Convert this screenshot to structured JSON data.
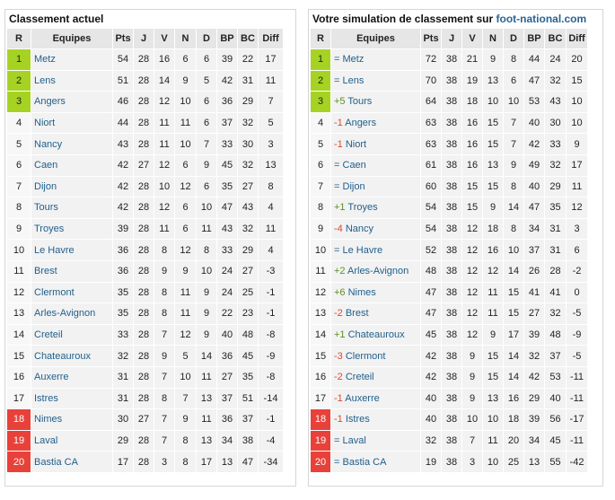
{
  "left": {
    "title": "Classement actuel",
    "headers": [
      "R",
      "Equipes",
      "Pts",
      "J",
      "V",
      "N",
      "D",
      "BP",
      "BC",
      "Diff"
    ],
    "rows": [
      {
        "r": "1",
        "team": "Metz",
        "pts": "54",
        "j": "28",
        "v": "16",
        "n": "6",
        "d": "6",
        "bp": "39",
        "bc": "22",
        "diff": "17",
        "zone": "green"
      },
      {
        "r": "2",
        "team": "Lens",
        "pts": "51",
        "j": "28",
        "v": "14",
        "n": "9",
        "d": "5",
        "bp": "42",
        "bc": "31",
        "diff": "11",
        "zone": "green"
      },
      {
        "r": "3",
        "team": "Angers",
        "pts": "46",
        "j": "28",
        "v": "12",
        "n": "10",
        "d": "6",
        "bp": "36",
        "bc": "29",
        "diff": "7",
        "zone": "green"
      },
      {
        "r": "4",
        "team": "Niort",
        "pts": "44",
        "j": "28",
        "v": "11",
        "n": "11",
        "d": "6",
        "bp": "37",
        "bc": "32",
        "diff": "5",
        "zone": ""
      },
      {
        "r": "5",
        "team": "Nancy",
        "pts": "43",
        "j": "28",
        "v": "11",
        "n": "10",
        "d": "7",
        "bp": "33",
        "bc": "30",
        "diff": "3",
        "zone": ""
      },
      {
        "r": "6",
        "team": "Caen",
        "pts": "42",
        "j": "27",
        "v": "12",
        "n": "6",
        "d": "9",
        "bp": "45",
        "bc": "32",
        "diff": "13",
        "zone": ""
      },
      {
        "r": "7",
        "team": "Dijon",
        "pts": "42",
        "j": "28",
        "v": "10",
        "n": "12",
        "d": "6",
        "bp": "35",
        "bc": "27",
        "diff": "8",
        "zone": ""
      },
      {
        "r": "8",
        "team": "Tours",
        "pts": "42",
        "j": "28",
        "v": "12",
        "n": "6",
        "d": "10",
        "bp": "47",
        "bc": "43",
        "diff": "4",
        "zone": ""
      },
      {
        "r": "9",
        "team": "Troyes",
        "pts": "39",
        "j": "28",
        "v": "11",
        "n": "6",
        "d": "11",
        "bp": "43",
        "bc": "32",
        "diff": "11",
        "zone": ""
      },
      {
        "r": "10",
        "team": "Le Havre",
        "pts": "36",
        "j": "28",
        "v": "8",
        "n": "12",
        "d": "8",
        "bp": "33",
        "bc": "29",
        "diff": "4",
        "zone": ""
      },
      {
        "r": "11",
        "team": "Brest",
        "pts": "36",
        "j": "28",
        "v": "9",
        "n": "9",
        "d": "10",
        "bp": "24",
        "bc": "27",
        "diff": "-3",
        "zone": ""
      },
      {
        "r": "12",
        "team": "Clermont",
        "pts": "35",
        "j": "28",
        "v": "8",
        "n": "11",
        "d": "9",
        "bp": "24",
        "bc": "25",
        "diff": "-1",
        "zone": ""
      },
      {
        "r": "13",
        "team": "Arles-Avignon",
        "pts": "35",
        "j": "28",
        "v": "8",
        "n": "11",
        "d": "9",
        "bp": "22",
        "bc": "23",
        "diff": "-1",
        "zone": ""
      },
      {
        "r": "14",
        "team": "Creteil",
        "pts": "33",
        "j": "28",
        "v": "7",
        "n": "12",
        "d": "9",
        "bp": "40",
        "bc": "48",
        "diff": "-8",
        "zone": ""
      },
      {
        "r": "15",
        "team": "Chateauroux",
        "pts": "32",
        "j": "28",
        "v": "9",
        "n": "5",
        "d": "14",
        "bp": "36",
        "bc": "45",
        "diff": "-9",
        "zone": ""
      },
      {
        "r": "16",
        "team": "Auxerre",
        "pts": "31",
        "j": "28",
        "v": "7",
        "n": "10",
        "d": "11",
        "bp": "27",
        "bc": "35",
        "diff": "-8",
        "zone": ""
      },
      {
        "r": "17",
        "team": "Istres",
        "pts": "31",
        "j": "28",
        "v": "8",
        "n": "7",
        "d": "13",
        "bp": "37",
        "bc": "51",
        "diff": "-14",
        "zone": ""
      },
      {
        "r": "18",
        "team": "Nimes",
        "pts": "30",
        "j": "27",
        "v": "7",
        "n": "9",
        "d": "11",
        "bp": "36",
        "bc": "37",
        "diff": "-1",
        "zone": "red"
      },
      {
        "r": "19",
        "team": "Laval",
        "pts": "29",
        "j": "28",
        "v": "7",
        "n": "8",
        "d": "13",
        "bp": "34",
        "bc": "38",
        "diff": "-4",
        "zone": "red"
      },
      {
        "r": "20",
        "team": "Bastia CA",
        "pts": "17",
        "j": "28",
        "v": "3",
        "n": "8",
        "d": "17",
        "bp": "13",
        "bc": "47",
        "diff": "-34",
        "zone": "red"
      }
    ]
  },
  "right": {
    "title_prefix": "Votre simulation de classement sur ",
    "title_site": "foot-national.com",
    "headers": [
      "R",
      "Equipes",
      "Pts",
      "J",
      "V",
      "N",
      "D",
      "BP",
      "BC",
      "Diff"
    ],
    "rows": [
      {
        "r": "1",
        "move": "=",
        "team": "Metz",
        "pts": "72",
        "j": "38",
        "v": "21",
        "n": "9",
        "d": "8",
        "bp": "44",
        "bc": "24",
        "diff": "20",
        "zone": "green"
      },
      {
        "r": "2",
        "move": "=",
        "team": "Lens",
        "pts": "70",
        "j": "38",
        "v": "19",
        "n": "13",
        "d": "6",
        "bp": "47",
        "bc": "32",
        "diff": "15",
        "zone": "green"
      },
      {
        "r": "3",
        "move": "+5",
        "team": "Tours",
        "pts": "64",
        "j": "38",
        "v": "18",
        "n": "10",
        "d": "10",
        "bp": "53",
        "bc": "43",
        "diff": "10",
        "zone": "green"
      },
      {
        "r": "4",
        "move": "-1",
        "team": "Angers",
        "pts": "63",
        "j": "38",
        "v": "16",
        "n": "15",
        "d": "7",
        "bp": "40",
        "bc": "30",
        "diff": "10",
        "zone": ""
      },
      {
        "r": "5",
        "move": "-1",
        "team": "Niort",
        "pts": "63",
        "j": "38",
        "v": "16",
        "n": "15",
        "d": "7",
        "bp": "42",
        "bc": "33",
        "diff": "9",
        "zone": ""
      },
      {
        "r": "6",
        "move": "=",
        "team": "Caen",
        "pts": "61",
        "j": "38",
        "v": "16",
        "n": "13",
        "d": "9",
        "bp": "49",
        "bc": "32",
        "diff": "17",
        "zone": ""
      },
      {
        "r": "7",
        "move": "=",
        "team": "Dijon",
        "pts": "60",
        "j": "38",
        "v": "15",
        "n": "15",
        "d": "8",
        "bp": "40",
        "bc": "29",
        "diff": "11",
        "zone": ""
      },
      {
        "r": "8",
        "move": "+1",
        "team": "Troyes",
        "pts": "54",
        "j": "38",
        "v": "15",
        "n": "9",
        "d": "14",
        "bp": "47",
        "bc": "35",
        "diff": "12",
        "zone": ""
      },
      {
        "r": "9",
        "move": "-4",
        "team": "Nancy",
        "pts": "54",
        "j": "38",
        "v": "12",
        "n": "18",
        "d": "8",
        "bp": "34",
        "bc": "31",
        "diff": "3",
        "zone": ""
      },
      {
        "r": "10",
        "move": "=",
        "team": "Le Havre",
        "pts": "52",
        "j": "38",
        "v": "12",
        "n": "16",
        "d": "10",
        "bp": "37",
        "bc": "31",
        "diff": "6",
        "zone": ""
      },
      {
        "r": "11",
        "move": "+2",
        "team": "Arles-Avignon",
        "pts": "48",
        "j": "38",
        "v": "12",
        "n": "12",
        "d": "14",
        "bp": "26",
        "bc": "28",
        "diff": "-2",
        "zone": ""
      },
      {
        "r": "12",
        "move": "+6",
        "team": "Nimes",
        "pts": "47",
        "j": "38",
        "v": "12",
        "n": "11",
        "d": "15",
        "bp": "41",
        "bc": "41",
        "diff": "0",
        "zone": ""
      },
      {
        "r": "13",
        "move": "-2",
        "team": "Brest",
        "pts": "47",
        "j": "38",
        "v": "12",
        "n": "11",
        "d": "15",
        "bp": "27",
        "bc": "32",
        "diff": "-5",
        "zone": ""
      },
      {
        "r": "14",
        "move": "+1",
        "team": "Chateauroux",
        "pts": "45",
        "j": "38",
        "v": "12",
        "n": "9",
        "d": "17",
        "bp": "39",
        "bc": "48",
        "diff": "-9",
        "zone": ""
      },
      {
        "r": "15",
        "move": "-3",
        "team": "Clermont",
        "pts": "42",
        "j": "38",
        "v": "9",
        "n": "15",
        "d": "14",
        "bp": "32",
        "bc": "37",
        "diff": "-5",
        "zone": ""
      },
      {
        "r": "16",
        "move": "-2",
        "team": "Creteil",
        "pts": "42",
        "j": "38",
        "v": "9",
        "n": "15",
        "d": "14",
        "bp": "42",
        "bc": "53",
        "diff": "-11",
        "zone": ""
      },
      {
        "r": "17",
        "move": "-1",
        "team": "Auxerre",
        "pts": "40",
        "j": "38",
        "v": "9",
        "n": "13",
        "d": "16",
        "bp": "29",
        "bc": "40",
        "diff": "-11",
        "zone": ""
      },
      {
        "r": "18",
        "move": "-1",
        "team": "Istres",
        "pts": "40",
        "j": "38",
        "v": "10",
        "n": "10",
        "d": "18",
        "bp": "39",
        "bc": "56",
        "diff": "-17",
        "zone": "red"
      },
      {
        "r": "19",
        "move": "=",
        "team": "Laval",
        "pts": "32",
        "j": "38",
        "v": "7",
        "n": "11",
        "d": "20",
        "bp": "34",
        "bc": "45",
        "diff": "-11",
        "zone": "red"
      },
      {
        "r": "20",
        "move": "=",
        "team": "Bastia CA",
        "pts": "19",
        "j": "38",
        "v": "3",
        "n": "10",
        "d": "25",
        "bp": "13",
        "bc": "55",
        "diff": "-42",
        "zone": "red"
      }
    ]
  },
  "colors": {
    "green": "#a6d323",
    "red": "#e8413a",
    "link": "#1f5f8b",
    "up": "#5f8f1e",
    "down": "#e0462c"
  }
}
